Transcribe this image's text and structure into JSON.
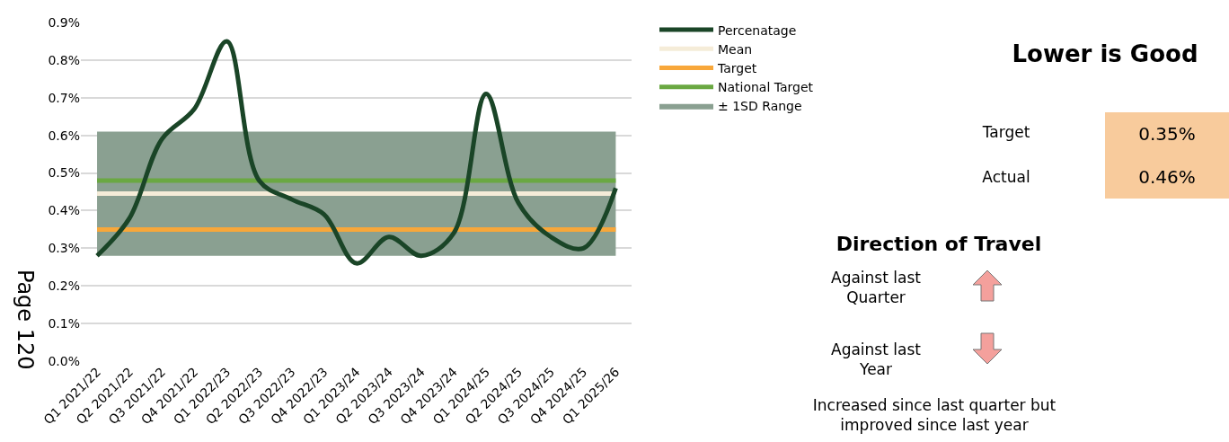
{
  "chart_data": {
    "type": "line",
    "categories": [
      "Q1 2021/22",
      "Q2 2021/22",
      "Q3 2021/22",
      "Q4 2021/22",
      "Q1 2022/23",
      "Q2 2022/23",
      "Q3 2022/23",
      "Q4 2022/23",
      "Q1 2023/24",
      "Q2 2023/24",
      "Q3 2023/24",
      "Q4 2023/24",
      "Q1 2024/25",
      "Q2 2024/25",
      "Q3 2024/25",
      "Q4 2024/25",
      "Q1 2025/26"
    ],
    "series": [
      {
        "name": "Percenatage",
        "color": "#1a4527",
        "values": [
          0.28,
          0.38,
          0.59,
          0.67,
          0.85,
          0.48,
          0.43,
          0.39,
          0.26,
          0.33,
          0.28,
          0.34,
          0.71,
          0.42,
          0.33,
          0.3,
          0.46
        ]
      }
    ],
    "ref_lines": [
      {
        "axis": "y",
        "value": 0.445,
        "label": "Mean",
        "color": "#f5ecd8"
      },
      {
        "axis": "y",
        "value": 0.35,
        "label": "Target",
        "color": "#f8a73a"
      },
      {
        "axis": "y",
        "value": 0.48,
        "label": "National Target",
        "color": "#6aa842"
      }
    ],
    "bands": [
      {
        "axis": "y",
        "from": 0.28,
        "to": 0.61,
        "label": "± 1SD Range",
        "color": "#8aa091"
      }
    ],
    "ylim": [
      0,
      0.9
    ],
    "yticks": [
      {
        "value": 0,
        "label": "0.0%"
      },
      {
        "value": 0.1,
        "label": "0.1%"
      },
      {
        "value": 0.2,
        "label": "0.2%"
      },
      {
        "value": 0.3,
        "label": "0.3%"
      },
      {
        "value": 0.4,
        "label": "0.4%"
      },
      {
        "value": 0.5,
        "label": "0.5%"
      },
      {
        "value": 0.6,
        "label": "0.6%"
      },
      {
        "value": 0.7,
        "label": "0.7%"
      },
      {
        "value": 0.8,
        "label": "0.8%"
      },
      {
        "value": 0.9,
        "label": "0.9%"
      }
    ],
    "grid": "y",
    "legend": "right",
    "marker": "none",
    "line_style": "solid",
    "annotations": [
      "Lower is Good",
      "Target",
      "0.35%",
      "Actual",
      "0.46%",
      "Direction of Travel",
      "Against last Quarter",
      "Against last Year",
      "Increased since last quarter but improved since last year",
      "Page 120"
    ]
  }
}
